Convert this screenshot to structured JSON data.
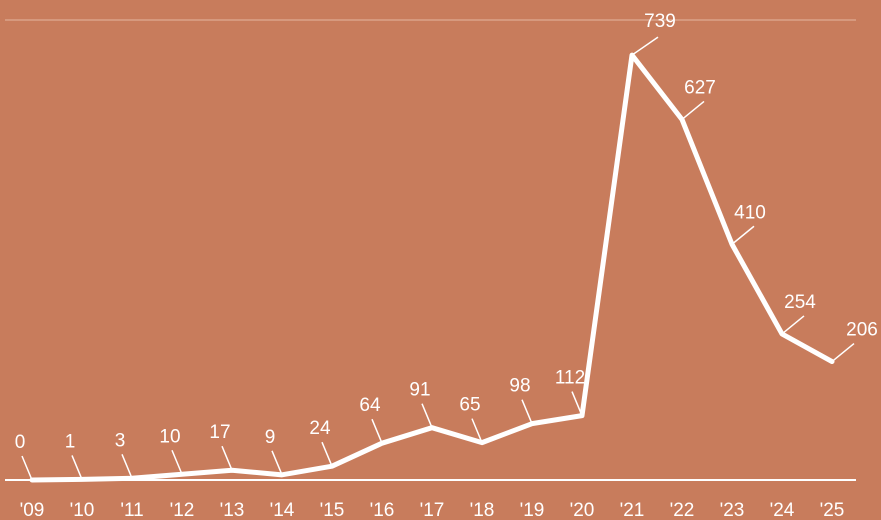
{
  "colors": {
    "background": "#c87c5c",
    "line": "#ffffff",
    "gridline": "#e3b6a0"
  },
  "chart_data": {
    "type": "line",
    "title": "",
    "xlabel": "",
    "ylabel": "",
    "x": [
      "'09",
      "'10",
      "'11",
      "'12",
      "'13",
      "'14",
      "'15",
      "'16",
      "'17",
      "'18",
      "'19",
      "'20",
      "'21",
      "'22",
      "'23",
      "'24",
      "'25"
    ],
    "series": [
      {
        "values": [
          0,
          1,
          3,
          10,
          17,
          9,
          24,
          64,
          91,
          65,
          98,
          112,
          739,
          627,
          410,
          254,
          206
        ]
      }
    ],
    "ylim": [
      0,
      800
    ],
    "grid": false,
    "data_labels": true,
    "legend": "none"
  }
}
